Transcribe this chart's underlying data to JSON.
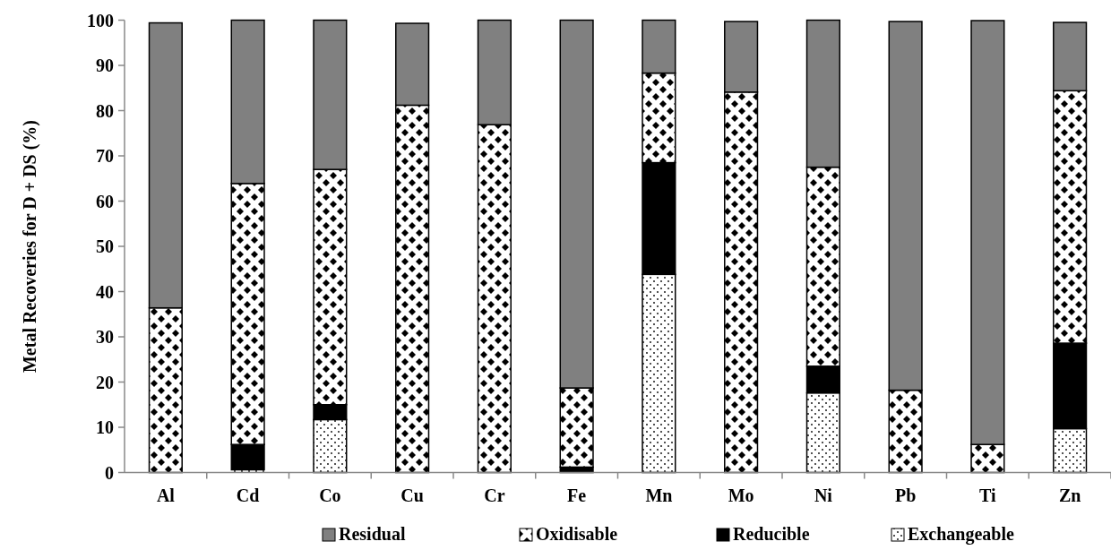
{
  "chart_data": {
    "type": "bar",
    "stacked": true,
    "ylabel": "Metal Recoveries for D + DS (%)",
    "categories": [
      "Al",
      "Cd",
      "Co",
      "Cu",
      "Cr",
      "Fe",
      "Mn",
      "Mo",
      "Ni",
      "Pb",
      "Ti",
      "Zn"
    ],
    "series": [
      {
        "name": "Exchangeable",
        "color": "#000000",
        "values": [
          0,
          0.6,
          11.7,
          0,
          0,
          0,
          43.8,
          0,
          17.6,
          0,
          0,
          9.7
        ]
      },
      {
        "name": "Reducible",
        "color": "#000000",
        "values": [
          0,
          5.6,
          3.3,
          0,
          0,
          1.2,
          24.7,
          0,
          5.9,
          0,
          0,
          18.9
        ]
      },
      {
        "name": "Oxidisable",
        "color": "#000000",
        "values": [
          36.4,
          57.7,
          52,
          81.2,
          76.9,
          17.5,
          19.8,
          84.1,
          44,
          18.2,
          6.2,
          55.8
        ]
      },
      {
        "name": "Residual",
        "color": "#808080",
        "values": [
          63,
          36.1,
          33,
          18.1,
          23.1,
          81.3,
          11.7,
          15.6,
          32.5,
          81.5,
          93.7,
          15.1
        ]
      }
    ],
    "ylim": [
      0,
      100
    ],
    "yticks": [
      0,
      10,
      20,
      30,
      40,
      50,
      60,
      70,
      80,
      90,
      100
    ],
    "legend": "bottom"
  }
}
